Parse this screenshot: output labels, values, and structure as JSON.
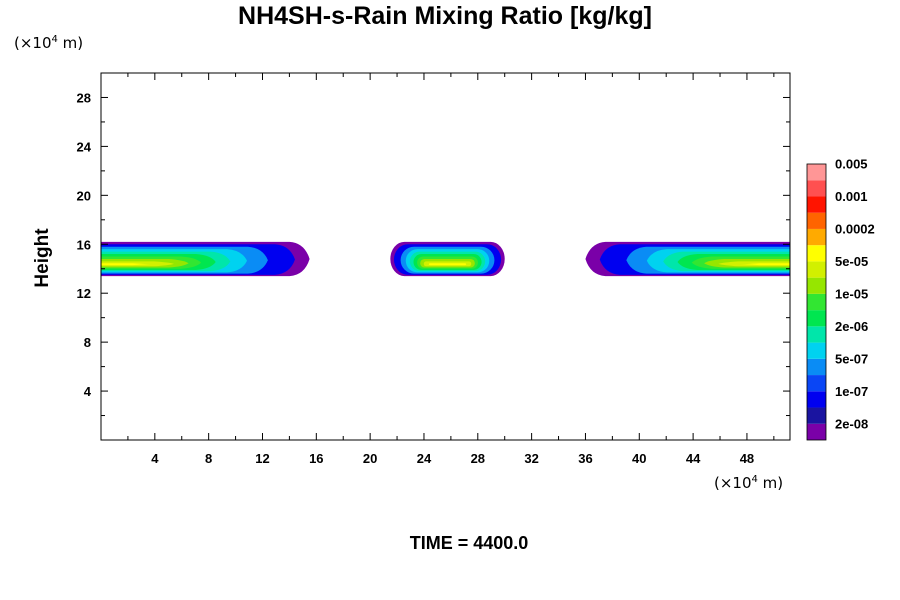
{
  "chart_data": {
    "type": "contour",
    "title": "NH4SH-s-Rain Mixing Ratio [kg/kg]",
    "x_unit": {
      "prefix": "(×10",
      "exp": "4",
      "suffix": " m)"
    },
    "y_unit": {
      "prefix": "(×10",
      "exp": "4",
      "suffix": " m)"
    },
    "ylabel": "Height",
    "xlabel": "",
    "xlim": [
      0,
      51.2
    ],
    "ylim": [
      0,
      30
    ],
    "x_ticks": [
      "4",
      "8",
      "12",
      "16",
      "20",
      "24",
      "28",
      "32",
      "36",
      "40",
      "44",
      "48"
    ],
    "y_ticks": [
      "4",
      "8",
      "12",
      "16",
      "20",
      "24",
      "28"
    ],
    "time_label": "TIME = 4400.0",
    "colorbar": {
      "colors": [
        "#7a00a8",
        "#1a14a0",
        "#0000f0",
        "#0a46f5",
        "#0a8cf5",
        "#00d2f0",
        "#00e6aa",
        "#00e650",
        "#32e632",
        "#96e600",
        "#d2f000",
        "#ffff00",
        "#ffaa00",
        "#ff6400",
        "#ff1400",
        "#ff5050",
        "#ff9696"
      ],
      "labels": [
        "2e-08",
        "1e-07",
        "5e-07",
        "2e-06",
        "1e-05",
        "5e-05",
        "0.0002",
        "0.001",
        "0.005"
      ]
    },
    "regions": [
      {
        "name": "left",
        "x_range": [
          0,
          15.5
        ],
        "y_range": [
          13.5,
          16.2
        ]
      },
      {
        "name": "center",
        "x_range": [
          21.5,
          30
        ],
        "y_range": [
          13.5,
          16.2
        ]
      },
      {
        "name": "right",
        "x_range": [
          36,
          51.2
        ],
        "y_range": [
          13.5,
          16.2
        ]
      }
    ]
  }
}
